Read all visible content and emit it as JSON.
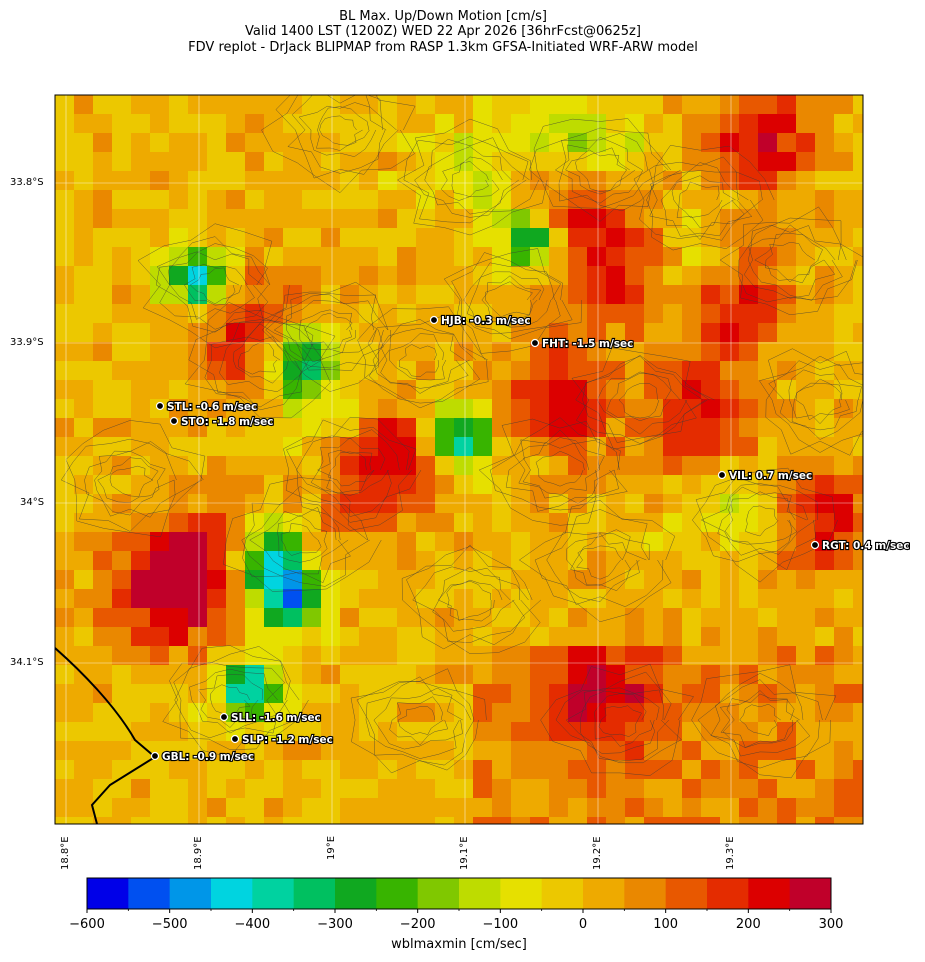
{
  "title": {
    "line1": "BL Max. Up/Down Motion [cm/s]",
    "line2": "Valid 1400 LST (1200Z) WED 22 Apr 2026 [36hrFcst@0625z]",
    "line3": "FDV replot - DrJack BLIPMAP from RASP 1.3km GFSA-Initiated WRF-ARW model"
  },
  "map": {
    "lat_labels": [
      "33.8°S",
      "33.9°S",
      "34°S",
      "34.1°S"
    ],
    "lon_labels": [
      "18.8°E",
      "18.9°E",
      "19°E",
      "19.1°E",
      "19.2°E",
      "19.3°E"
    ],
    "stations": [
      {
        "code": "HJB",
        "label": "HJB: -0.3 m/sec"
      },
      {
        "code": "FHT",
        "label": "FHT: -1.5 m/sec"
      },
      {
        "code": "STL",
        "label": "STL: -0.6 m/sec"
      },
      {
        "code": "STO",
        "label": "STO: -1.8 m/sec"
      },
      {
        "code": "VIL",
        "label": "VIL: 0.7 m/sec"
      },
      {
        "code": "RGT",
        "label": "RGT: 0.4 m/sec"
      },
      {
        "code": "SLL",
        "label": "SLL: -1.6 m/sec"
      },
      {
        "code": "SLP",
        "label": "SLP: -1.2 m/sec"
      },
      {
        "code": "GBL",
        "label": "GBL: -0.9 m/sec"
      }
    ]
  },
  "colorbar": {
    "label": "wblmaxmin [cm/sec]",
    "ticks": [
      "−600",
      "−500",
      "−400",
      "−300",
      "−200",
      "−100",
      "0",
      "100",
      "200",
      "300"
    ],
    "colors": [
      "#0000e8",
      "#0050f0",
      "#0096e8",
      "#00d4e0",
      "#00d2a0",
      "#00c060",
      "#10a820",
      "#38b400",
      "#80c800",
      "#bedc00",
      "#e6e000",
      "#ecc800",
      "#eeaa00",
      "#ea8800",
      "#e85800",
      "#e42c00",
      "#dc0000",
      "#c0002a"
    ]
  },
  "colors": {
    "contour": "#3a3a3a",
    "coastline": "#000000",
    "gridline": "#ffffff"
  }
}
